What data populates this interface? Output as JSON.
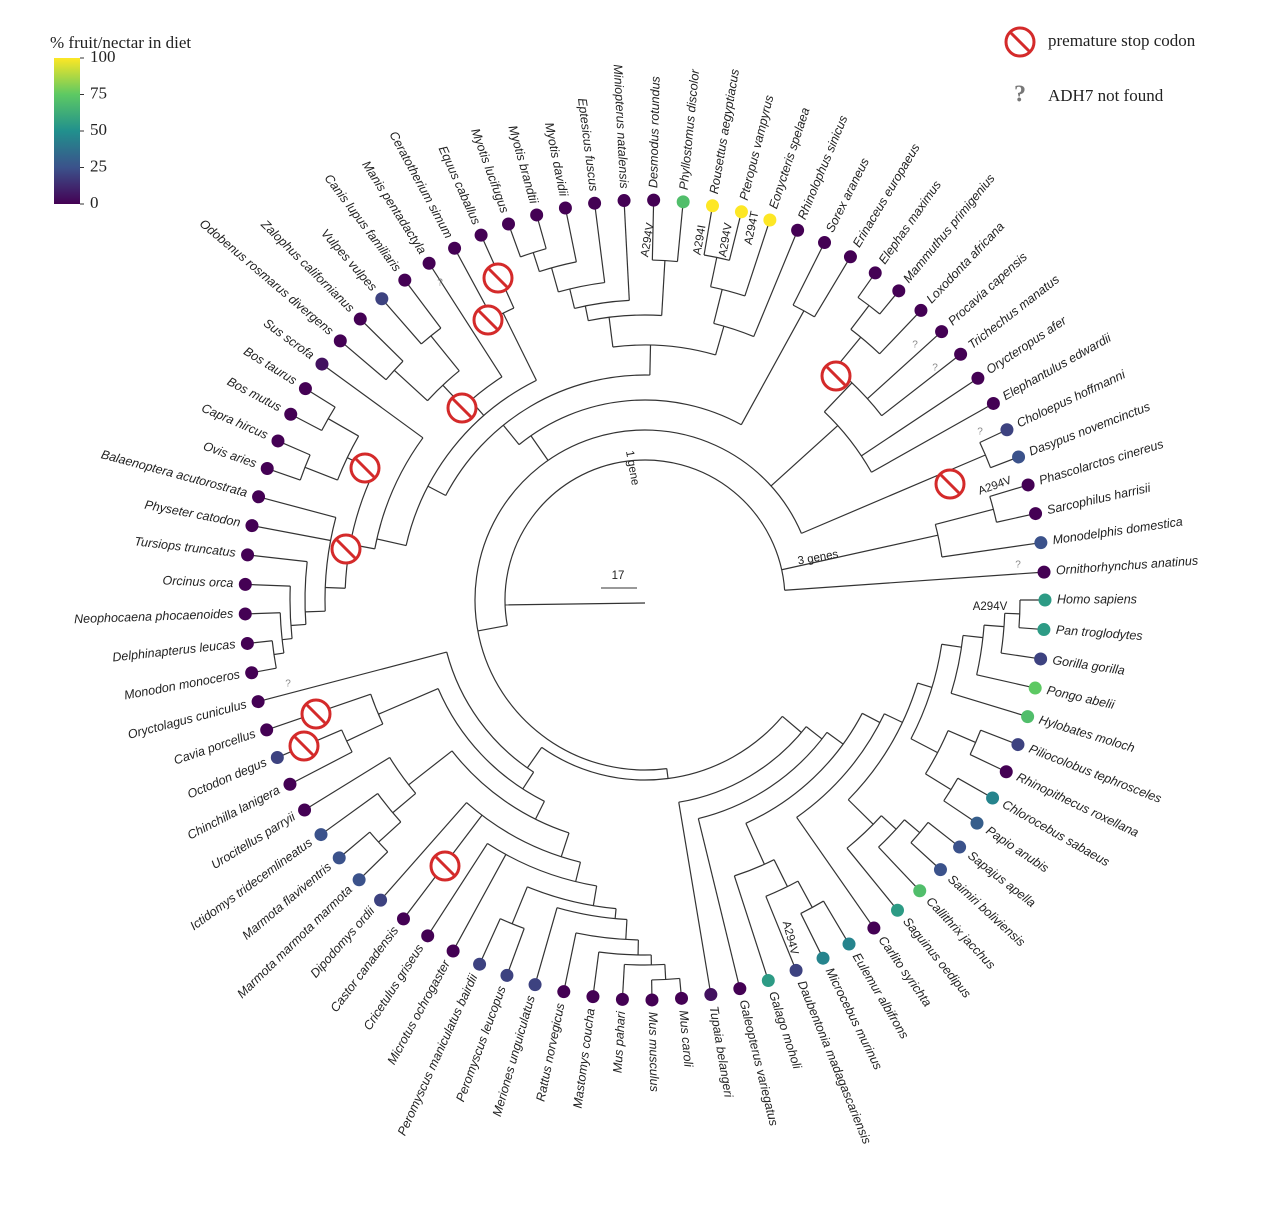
{
  "legend": {
    "title": "% fruit/nectar in diet",
    "ticks": [
      0,
      25,
      50,
      75,
      100
    ],
    "items": [
      {
        "label": "premature stop codon"
      },
      {
        "symbol": "?",
        "label": "ADH7 not found"
      }
    ]
  },
  "species": [
    {
      "name": "Ornithorhynchus anatinus",
      "fruit": 0
    },
    {
      "name": "Monodelphis domestica",
      "fruit": 25
    },
    {
      "name": "Sarcophilus harrisii",
      "fruit": 0
    },
    {
      "name": "Phascolarctos cinereus",
      "fruit": 0
    },
    {
      "name": "Dasypus novemcinctus",
      "fruit": 25
    },
    {
      "name": "Choloepus hoffmanni",
      "fruit": 20
    },
    {
      "name": "Elephantulus edwardii",
      "fruit": 0
    },
    {
      "name": "Orycteropus afer",
      "fruit": 0
    },
    {
      "name": "Trichechus manatus",
      "fruit": 0
    },
    {
      "name": "Procavia capensis",
      "fruit": 0
    },
    {
      "name": "Loxodonta africana",
      "fruit": 0
    },
    {
      "name": "Mammuthus primigenius",
      "fruit": 0
    },
    {
      "name": "Elephas maximus",
      "fruit": 0
    },
    {
      "name": "Erinaceus europaeus",
      "fruit": 0
    },
    {
      "name": "Sorex araneus",
      "fruit": 0
    },
    {
      "name": "Rhinolophus sinicus",
      "fruit": 0
    },
    {
      "name": "Eonycteris spelaea",
      "fruit": 100
    },
    {
      "name": "Pteropus vampyrus",
      "fruit": 100
    },
    {
      "name": "Rousettus aegyptiacus",
      "fruit": 100
    },
    {
      "name": "Phyllostomus discolor",
      "fruit": 70
    },
    {
      "name": "Desmodus rotundus",
      "fruit": 0
    },
    {
      "name": "Miniopterus natalensis",
      "fruit": 0
    },
    {
      "name": "Eptesicus fuscus",
      "fruit": 0
    },
    {
      "name": "Myotis davidii",
      "fruit": 0
    },
    {
      "name": "Myotis brandtii",
      "fruit": 0
    },
    {
      "name": "Myotis lucifugus",
      "fruit": 0
    },
    {
      "name": "Equus caballus",
      "fruit": 0
    },
    {
      "name": "Ceratotherium simum",
      "fruit": 0
    },
    {
      "name": "Manis pentadactyla",
      "fruit": 0
    },
    {
      "name": "Canis lupus familiaris",
      "fruit": 0
    },
    {
      "name": "Vulpes vulpes",
      "fruit": 20
    },
    {
      "name": "Zalophus californianus",
      "fruit": 0
    },
    {
      "name": "Odobenus rosmarus divergens",
      "fruit": 0
    },
    {
      "name": "Sus scrofa",
      "fruit": 5
    },
    {
      "name": "Bos taurus",
      "fruit": 0
    },
    {
      "name": "Bos mutus",
      "fruit": 0
    },
    {
      "name": "Capra hircus",
      "fruit": 0
    },
    {
      "name": "Ovis aries",
      "fruit": 0
    },
    {
      "name": "Balaenoptera acutorostrata",
      "fruit": 0
    },
    {
      "name": "Physeter catodon",
      "fruit": 0
    },
    {
      "name": "Tursiops truncatus",
      "fruit": 0
    },
    {
      "name": "Orcinus orca",
      "fruit": 0
    },
    {
      "name": "Neophocaena phocaenoides",
      "fruit": 0
    },
    {
      "name": "Delphinapterus leucas",
      "fruit": 0
    },
    {
      "name": "Monodon monoceros",
      "fruit": 0
    },
    {
      "name": "Oryctolagus cuniculus",
      "fruit": 0
    },
    {
      "name": "Cavia porcellus",
      "fruit": 0
    },
    {
      "name": "Octodon degus",
      "fruit": 20
    },
    {
      "name": "Chinchilla lanigera",
      "fruit": 0
    },
    {
      "name": "Urocitellus parryii",
      "fruit": 0
    },
    {
      "name": "Ictidomys tridecemlineatus",
      "fruit": 25
    },
    {
      "name": "Marmota flaviventris",
      "fruit": 25
    },
    {
      "name": "Marmota marmota marmota",
      "fruit": 25
    },
    {
      "name": "Dipodomys ordii",
      "fruit": 20
    },
    {
      "name": "Castor canadensis",
      "fruit": 0
    },
    {
      "name": "Cricetulus griseus",
      "fruit": 0
    },
    {
      "name": "Microtus ochrogaster",
      "fruit": 0
    },
    {
      "name": "Peromyscus maniculatus bairdii",
      "fruit": 20
    },
    {
      "name": "Peromyscus leucopus",
      "fruit": 20
    },
    {
      "name": "Meriones unguiculatus",
      "fruit": 20
    },
    {
      "name": "Rattus norvegicus",
      "fruit": 0
    },
    {
      "name": "Mastomys coucha",
      "fruit": 0
    },
    {
      "name": "Mus pahari",
      "fruit": 0
    },
    {
      "name": "Mus musculus",
      "fruit": 0
    },
    {
      "name": "Mus caroli",
      "fruit": 0
    },
    {
      "name": "Tupaia belangeri",
      "fruit": 5
    },
    {
      "name": "Galeopterus variegatus",
      "fruit": 0
    },
    {
      "name": "Galago moholi",
      "fruit": 55
    },
    {
      "name": "Daubentonia madagascariensis",
      "fruit": 20
    },
    {
      "name": "Microcebus murinus",
      "fruit": 45
    },
    {
      "name": "Eulemur albifrons",
      "fruit": 45
    },
    {
      "name": "Carlito syrichta",
      "fruit": 0
    },
    {
      "name": "Saguinus oedipus",
      "fruit": 55
    },
    {
      "name": "Callithrix jacchus",
      "fruit": 70
    },
    {
      "name": "Saimiri boliviensis",
      "fruit": 25
    },
    {
      "name": "Sapajus apella",
      "fruit": 25
    },
    {
      "name": "Papio anubis",
      "fruit": 30
    },
    {
      "name": "Chlorocebus sabaeus",
      "fruit": 45
    },
    {
      "name": "Rhinopithecus roxellana",
      "fruit": 0
    },
    {
      "name": "Piliocolobus tephrosceles",
      "fruit": 20
    },
    {
      "name": "Hylobates moloch",
      "fruit": 70
    },
    {
      "name": "Pongo abelii",
      "fruit": 75
    },
    {
      "name": "Gorilla gorilla",
      "fruit": 20
    },
    {
      "name": "Pan troglodytes",
      "fruit": 55
    },
    {
      "name": "Homo sapiens",
      "fruit": 55
    }
  ],
  "annotations": [
    "A294V",
    "A294I",
    "A294V",
    "A294T",
    "A294V",
    "A294V",
    "A294V",
    "1 gene",
    "3 genes",
    "17",
    "?",
    "?",
    "?",
    "?",
    "?",
    "?"
  ]
}
